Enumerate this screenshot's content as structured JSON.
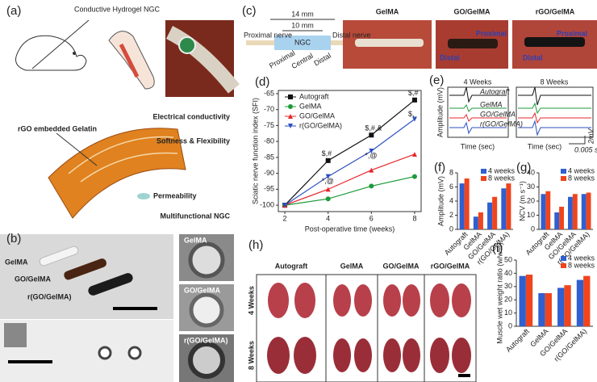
{
  "panel_letters": [
    "(a)",
    "(b)",
    "(c)",
    "(d)",
    "(e)",
    "(f)",
    "(g)",
    "(h)",
    "(i)"
  ],
  "a": {
    "title": "Conductive Hydrogel NGC",
    "callout": "rGO embedded Gelatin",
    "features": [
      "Electrical conductivity",
      "Softness & Flexibility",
      "Permeability",
      "Multifunctional NGC"
    ]
  },
  "b": {
    "conduits": [
      "GelMA",
      "GO/GelMA",
      "r(GO/GelMA)"
    ],
    "sem": [
      "GelMA",
      "GO/GelMA",
      "r(GO/GelMA)"
    ]
  },
  "c": {
    "lengths": [
      "14 mm",
      "10 mm"
    ],
    "ends": [
      "Proximal nerve",
      "Distal nerve"
    ],
    "ngc": "NGC",
    "regions": [
      "Proximal",
      "Central",
      "Distal"
    ],
    "photos": [
      "GelMA",
      "GO/GelMA",
      "rGO/GelMA"
    ],
    "photo_labels": [
      "Proximal",
      "Distal",
      "Proximal",
      "Distal"
    ]
  },
  "e": {
    "columns": [
      "4 Weeks",
      "8 Weeks"
    ],
    "ylabel": "Amplitude (mV)",
    "xlabel": "Time (sec)",
    "traces": [
      "Autograft",
      "GelMA",
      "GO/GelMA",
      "r(GO/GelMA)"
    ],
    "scale_x": "0.005 s",
    "scale_y": "2mV"
  },
  "h": {
    "columns": [
      "Autograft",
      "GelMA",
      "GO/GelMA",
      "rGO/GelMA"
    ],
    "rows": [
      "4 Weeks",
      "8 Weeks"
    ]
  },
  "chart_data": [
    {
      "type": "line",
      "x": [
        2,
        4,
        6,
        8
      ],
      "xlim": [
        1.7,
        8.3
      ],
      "xticks": [
        2,
        4,
        6,
        8
      ],
      "ylim": [
        -102,
        -64
      ],
      "yticks": [
        -100,
        -95,
        -90,
        -85,
        -80,
        -75,
        -70,
        -65
      ],
      "xlabel": "Post-operative time (weeks)",
      "ylabel": "Sciatic nerve function index (SFI)",
      "legend": "upper left",
      "series": [
        {
          "name": "Autograft",
          "color": "#111111",
          "values": [
            -100,
            -86,
            -78,
            -67
          ]
        },
        {
          "name": "GelMA",
          "color": "#1e9a3a",
          "values": [
            -100,
            -98,
            -94,
            -91
          ]
        },
        {
          "name": "GO/GelMA",
          "color": "#e8262b",
          "values": [
            -100,
            -95,
            -89,
            -84
          ]
        },
        {
          "name": "r(GO/GelMA)",
          "color": "#2c4fbf",
          "values": [
            -100,
            -91,
            -83,
            -73
          ]
        }
      ],
      "annotations": [
        "$,#",
        "$,#,&",
        "$,#",
        "$,",
        "*,@",
        "*,@"
      ]
    },
    {
      "type": "bar",
      "categories": [
        "Autograft",
        "GelMA",
        "GO/GelMA",
        "r(GO/GelMA)"
      ],
      "ylim": [
        0,
        8
      ],
      "yticks": [
        0,
        2,
        4,
        6,
        8
      ],
      "ylabel": "Amplitude (mV)",
      "legend": "upper right",
      "series": [
        {
          "name": "4 weeks",
          "color": "#2f5fd0",
          "values": [
            6.5,
            1.8,
            3.8,
            5.8
          ]
        },
        {
          "name": "8 weeks",
          "color": "#f0441c",
          "values": [
            7.2,
            2.4,
            4.6,
            6.5
          ]
        }
      ]
    },
    {
      "type": "bar",
      "categories": [
        "Autograft",
        "GelMA",
        "GO/GelMA",
        "r(GO/GelMA)"
      ],
      "ylim": [
        0,
        40
      ],
      "yticks": [
        0,
        10,
        20,
        30,
        40
      ],
      "ylabel": "NCV (m s⁻¹)",
      "legend": "upper right",
      "series": [
        {
          "name": "4 weeks",
          "color": "#2f5fd0",
          "values": [
            25,
            12,
            23,
            25
          ]
        },
        {
          "name": "8 weeks",
          "color": "#f0441c",
          "values": [
            27,
            16,
            25,
            26
          ]
        }
      ]
    },
    {
      "type": "bar",
      "categories": [
        "Autograft",
        "GelMA",
        "GO/GelMA",
        "r(GO/GelMA)"
      ],
      "ylim": [
        0,
        50
      ],
      "yticks": [
        0,
        10,
        20,
        30,
        40,
        50
      ],
      "ylabel": "Muscle wet weight ratio (w/w%)",
      "legend": "upper right",
      "series": [
        {
          "name": "4 weeks",
          "color": "#2f5fd0",
          "values": [
            38,
            25,
            29,
            35
          ]
        },
        {
          "name": "8 weeks",
          "color": "#f0441c",
          "values": [
            39,
            25,
            31,
            38
          ]
        }
      ]
    }
  ]
}
